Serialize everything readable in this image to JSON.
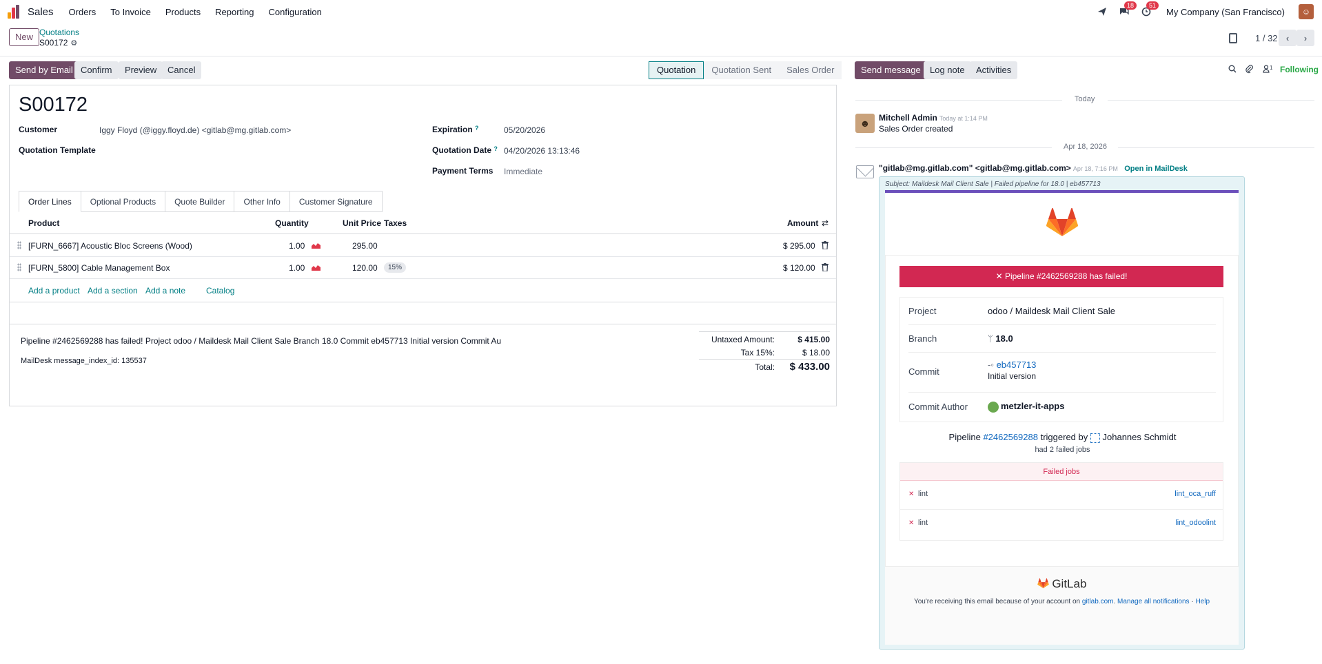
{
  "navbar": {
    "app_name": "Sales",
    "menu": [
      "Orders",
      "To Invoice",
      "Products",
      "Reporting",
      "Configuration"
    ],
    "messages_badge": "18",
    "activities_badge": "51",
    "company": "My Company (San Francisco)"
  },
  "control": {
    "new_label": "New",
    "breadcrumb_parent": "Quotations",
    "breadcrumb_current": "S00172",
    "pager": "1 / 32"
  },
  "actions": {
    "send_by_email": "Send by Email",
    "confirm": "Confirm",
    "preview": "Preview",
    "cancel": "Cancel"
  },
  "statusbar": {
    "steps": [
      "Quotation",
      "Quotation Sent",
      "Sales Order"
    ],
    "active": "Quotation"
  },
  "form": {
    "name": "S00172",
    "customer_label": "Customer",
    "customer_value": "Iggy Floyd (@iggy.floyd.de) <gitlab@mg.gitlab.com>",
    "template_label": "Quotation Template",
    "expiration_label": "Expiration",
    "expiration_value": "05/20/2026",
    "quotation_date_label": "Quotation Date",
    "quotation_date_value": "04/20/2026 13:13:46",
    "payment_terms_label": "Payment Terms",
    "payment_terms_value": "Immediate",
    "tooltip_mark": "?",
    "tabs": [
      "Order Lines",
      "Optional Products",
      "Quote Builder",
      "Other Info",
      "Customer Signature"
    ],
    "columns": {
      "product": "Product",
      "quantity": "Quantity",
      "unit_price": "Unit Price",
      "taxes": "Taxes",
      "amount": "Amount"
    },
    "lines": [
      {
        "product": "[FURN_6667] Acoustic Bloc Screens (Wood)",
        "quantity": "1.00",
        "unit_price": "295.00",
        "tax": "",
        "amount": "$ 295.00"
      },
      {
        "product": "[FURN_5800] Cable Management Box",
        "quantity": "1.00",
        "unit_price": "120.00",
        "tax": "15%",
        "amount": "$ 120.00"
      }
    ],
    "add_product": "Add a product",
    "add_section": "Add a section",
    "add_note": "Add a note",
    "catalog": "Catalog",
    "note_line1": "Pipeline #2462569288 has failed! Project odoo / Maildesk Mail Client Sale Branch 18.0 Commit eb457713 Initial version Commit Au",
    "note_line2": "MailDesk message_index_id: 135537",
    "untaxed_label": "Untaxed Amount:",
    "untaxed_value": "$ 415.00",
    "tax_label": "Tax 15%:",
    "tax_value": "$ 18.00",
    "total_label": "Total:",
    "total_value": "$ 433.00"
  },
  "chatter": {
    "send_message": "Send message",
    "log_note": "Log note",
    "activities": "Activities",
    "followers_count": "1",
    "following": "Following",
    "today": "Today",
    "msg1_author": "Mitchell Admin",
    "msg1_time": "Today at 1:14 PM",
    "msg1_text": "Sales Order created",
    "date2": "Apr 18, 2026",
    "msg2_author": "\"gitlab@mg.gitlab.com\" <gitlab@mg.gitlab.com>",
    "msg2_time": "Apr 18, 7:16 PM",
    "open_in_maildesk": "Open in MailDesk",
    "subject": "Subject: Maildesk Mail Client Sale | Failed pipeline for 18.0 | eb457713"
  },
  "email": {
    "banner": "Pipeline #2462569288 has failed!",
    "project_label": "Project",
    "project_value": "odoo / Maildesk Mail Client Sale",
    "branch_label": "Branch",
    "branch_value": "18.0",
    "commit_label": "Commit",
    "commit_hash": "eb457713",
    "commit_msg": "Initial version",
    "author_label": "Commit Author",
    "author_value": "metzler-it-apps",
    "pipeline_word": "Pipeline",
    "pipeline_link": "#2462569288",
    "triggered_by": "triggered by",
    "triggerer": "Johannes Schmidt",
    "failed_count": "had 2 failed jobs",
    "failed_jobs_title": "Failed jobs",
    "jobs": [
      {
        "stage": "lint",
        "name": "lint_oca_ruff"
      },
      {
        "stage": "lint",
        "name": "lint_odoolint"
      }
    ],
    "footer_brand": "GitLab",
    "footer_prefix": "You're receiving this email because of your account on",
    "footer_link1": "gitlab.com",
    "footer_link2": "Manage all notifications",
    "footer_sep": "·",
    "footer_link3": "Help"
  }
}
